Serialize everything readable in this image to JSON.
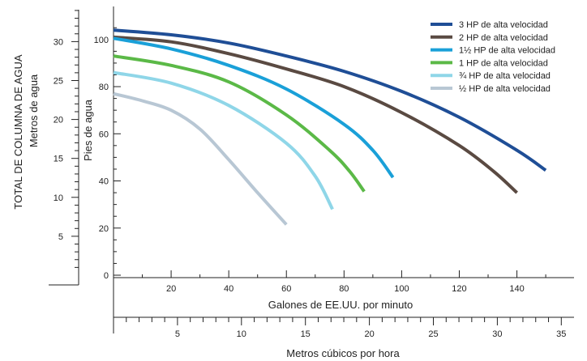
{
  "chart_data": {
    "type": "line",
    "x_primary": {
      "label": "Galones de EE.UU. por minuto",
      "unit": "gpm",
      "range": [
        0,
        160
      ],
      "ticks": [
        20,
        40,
        60,
        80,
        100,
        120,
        140
      ]
    },
    "x_secondary": {
      "label": "Metros cúbicos por hora",
      "unit": "m3/h",
      "range": [
        0,
        36
      ],
      "ticks": [
        5,
        10,
        15,
        20,
        25,
        30,
        35
      ]
    },
    "y_primary": {
      "label": "Pies de agua",
      "unit": "ft",
      "range": [
        0,
        110
      ],
      "ticks": [
        0,
        20,
        40,
        60,
        80,
        100
      ]
    },
    "y_secondary": {
      "label_line1": "TOTAL DE COLUMNA DE AGUA",
      "label_line2": "Metros de agua",
      "unit": "m",
      "range": [
        0,
        33.5
      ],
      "ticks": [
        5,
        10,
        15,
        20,
        25,
        30
      ]
    },
    "legend_position": "top-right",
    "series": [
      {
        "name": "3 HP de alta velocidad",
        "color": "#1f4e96",
        "x": [
          0,
          20,
          40,
          60,
          80,
          100,
          120,
          140,
          150
        ],
        "y": [
          104,
          102,
          98.5,
          93,
          86.5,
          78,
          67,
          53,
          44.5
        ]
      },
      {
        "name": "2 HP de alta velocidad",
        "color": "#5a4a42",
        "x": [
          0,
          20,
          40,
          60,
          80,
          100,
          120,
          132,
          140
        ],
        "y": [
          101,
          99,
          94,
          87.5,
          80,
          69,
          55,
          44,
          35
        ]
      },
      {
        "name": "1½ HP de alta velocidad",
        "color": "#1aa0d8",
        "x": [
          0,
          20,
          40,
          60,
          80,
          90,
          97
        ],
        "y": [
          100.5,
          96,
          89,
          79,
          64,
          53,
          41.5
        ]
      },
      {
        "name": "1 HP de alta velocidad",
        "color": "#5bb947",
        "x": [
          0,
          20,
          40,
          60,
          75,
          82,
          87
        ],
        "y": [
          93,
          89,
          82,
          68,
          53,
          44,
          35.5
        ]
      },
      {
        "name": "¾ HP de alta velocidad",
        "color": "#8fd6e8",
        "x": [
          0,
          20,
          40,
          60,
          70,
          76
        ],
        "y": [
          86,
          81.5,
          72,
          56,
          42,
          28
        ]
      },
      {
        "name": "½ HP de alta velocidad",
        "color": "#b8c7d4",
        "x": [
          0,
          10,
          20,
          30,
          40,
          50,
          60
        ],
        "y": [
          77,
          74,
          70,
          62,
          49,
          35,
          21.5
        ]
      }
    ]
  }
}
